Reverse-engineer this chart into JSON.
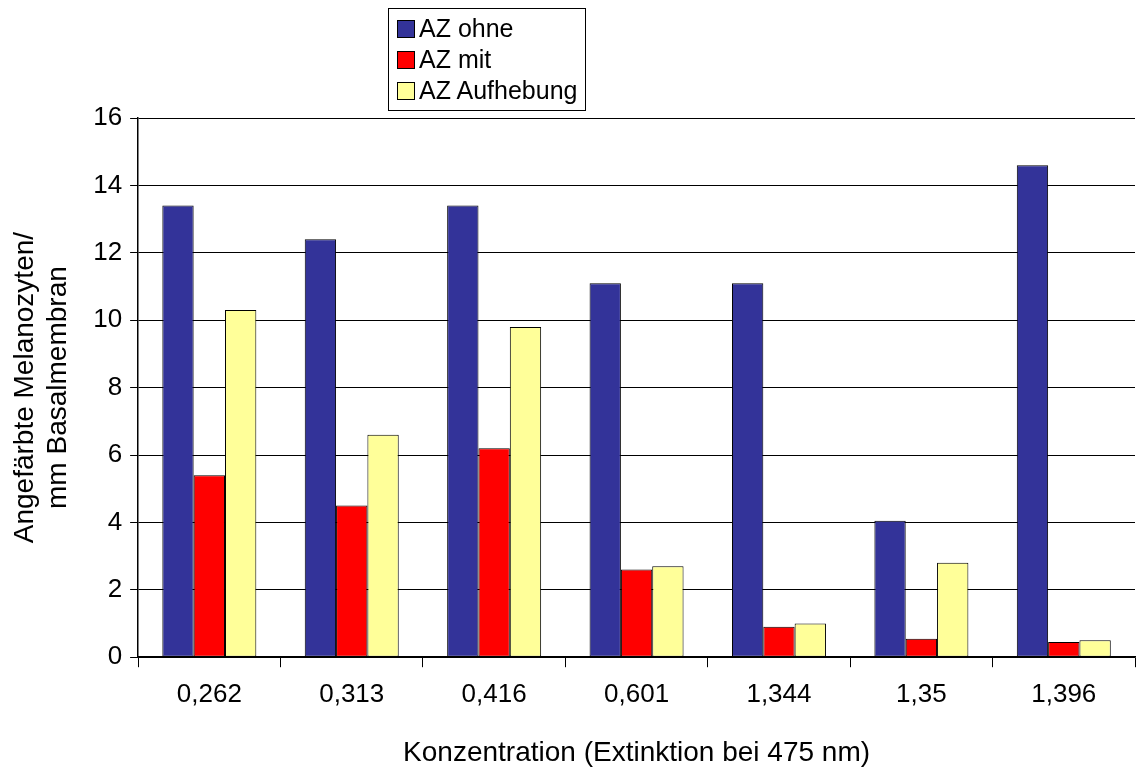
{
  "chart_data": {
    "type": "bar",
    "xlabel": "Konzentration (Extinktion bei 475 nm)",
    "ylabel": "Angefärbte Melanozyten/ mm Basalmembran",
    "categories": [
      "0,262",
      "0,313",
      "0,416",
      "0,601",
      "1,344",
      "1,35",
      "1,396"
    ],
    "series": [
      {
        "name": "AZ ohne",
        "color": "#333399",
        "values": [
          13.4,
          12.4,
          13.4,
          11.1,
          11.1,
          4.05,
          14.6
        ]
      },
      {
        "name": "AZ mit",
        "color": "#ff0000",
        "values": [
          5.4,
          4.5,
          6.2,
          2.6,
          0.9,
          0.55,
          0.45
        ]
      },
      {
        "name": "AZ Aufhebung",
        "color": "#ffff99",
        "values": [
          10.3,
          6.6,
          9.8,
          2.7,
          1.0,
          2.8,
          0.5
        ]
      }
    ],
    "ylim": [
      0,
      16
    ],
    "yticks": [
      0,
      2,
      4,
      6,
      8,
      10,
      12,
      14,
      16
    ],
    "grid": "y",
    "legend": "top"
  }
}
